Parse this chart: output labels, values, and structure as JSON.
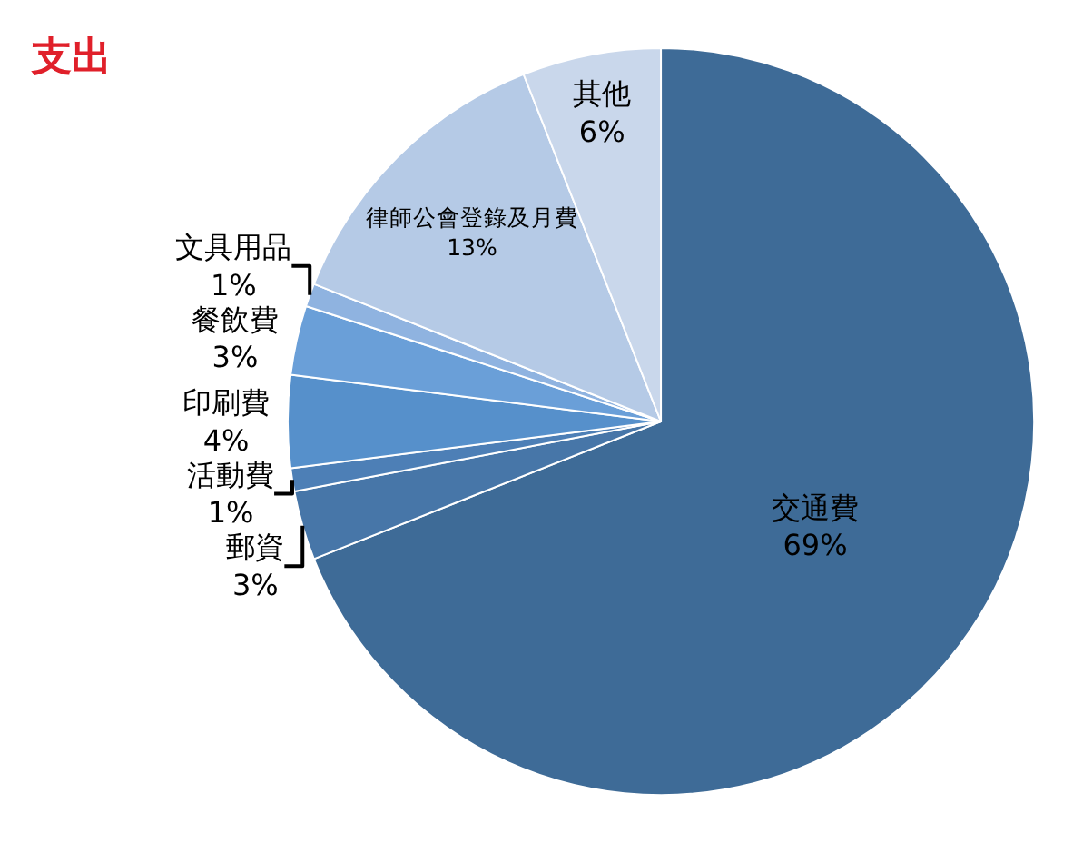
{
  "chart_data": {
    "type": "pie",
    "title": "支出",
    "categories": [
      "交通費",
      "郵資",
      "活動費",
      "印刷費",
      "餐飲費",
      "文具用品",
      "律師公會登錄及月費",
      "其他"
    ],
    "values": [
      69,
      3,
      1,
      4,
      3,
      1,
      13,
      6
    ],
    "colors": [
      "#3e6b97",
      "#4776a8",
      "#4d7fb6",
      "#5690cb",
      "#6a9fd8",
      "#8fb3e0",
      "#b5cae6",
      "#c9d7eb"
    ],
    "value_labels": [
      "69%",
      "3%",
      "1%",
      "4%",
      "3%",
      "1%",
      "13%",
      "6%"
    ],
    "legend": false
  }
}
